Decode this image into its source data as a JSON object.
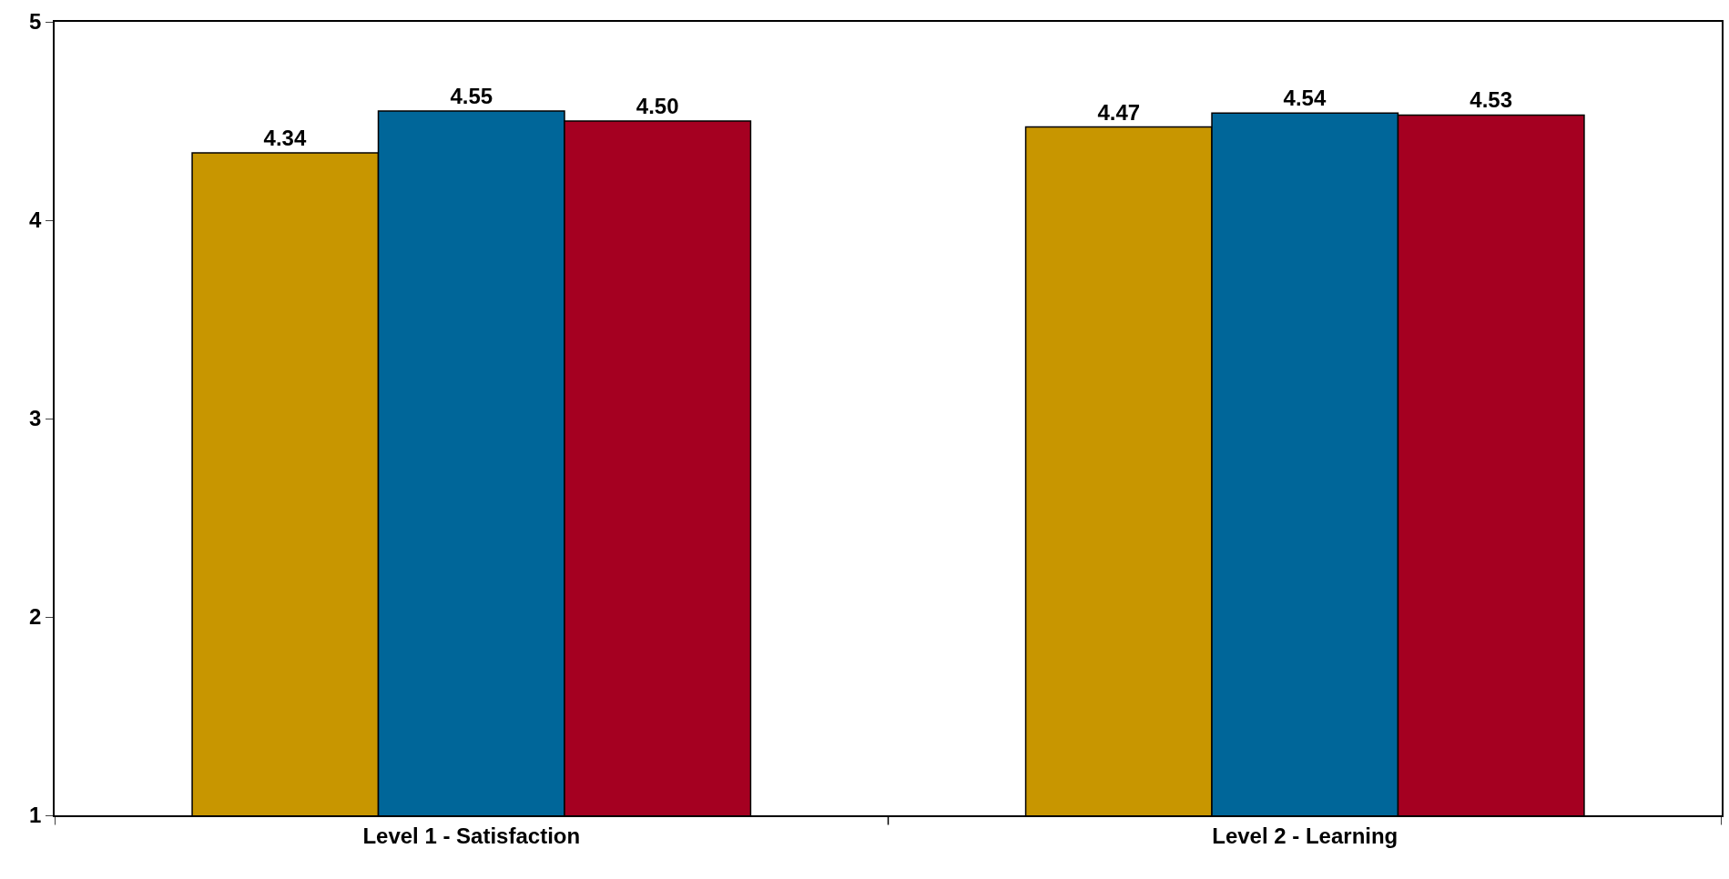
{
  "chart_data": {
    "type": "bar",
    "categories": [
      "Level 1 - Satisfaction",
      "Level 2 - Learning"
    ],
    "series": [
      {
        "color": "#c89600",
        "values": [
          4.34,
          4.47
        ],
        "value_labels": [
          "4.34",
          "4.47"
        ]
      },
      {
        "color": "#006699",
        "values": [
          4.55,
          4.54
        ],
        "value_labels": [
          "4.55",
          "4.54"
        ]
      },
      {
        "color": "#a50021",
        "values": [
          4.5,
          4.53
        ],
        "value_labels": [
          "4.50",
          "4.53"
        ]
      }
    ],
    "ylim": [
      1,
      5
    ],
    "yticks": [
      1,
      2,
      3,
      4,
      5
    ]
  }
}
